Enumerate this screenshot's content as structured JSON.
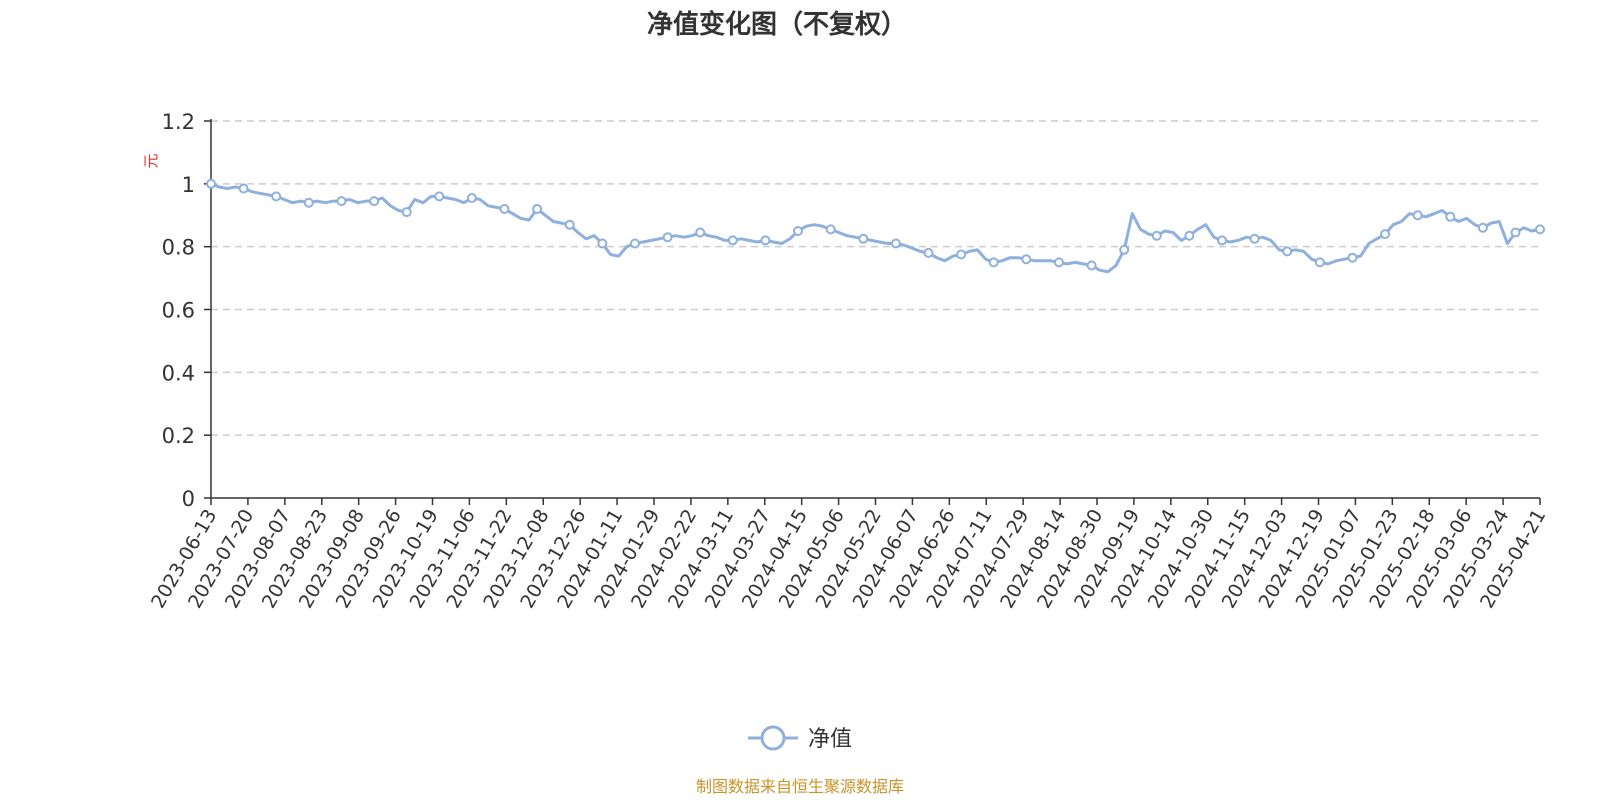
{
  "chart_data": {
    "type": "line",
    "title": "净值变化图（不复权）",
    "ylabel": "元",
    "xlabel": "",
    "ylim": [
      0,
      1.2
    ],
    "yticks": [
      "0",
      "0.2",
      "0.4",
      "0.6",
      "0.8",
      "1",
      "1.2"
    ],
    "grid": true,
    "legend_position": "bottom-center",
    "x_tick_labels": [
      "2023-06-13",
      "2023-07-20",
      "2023-08-07",
      "2023-08-23",
      "2023-09-08",
      "2023-09-26",
      "2023-10-19",
      "2023-11-06",
      "2023-11-22",
      "2023-12-08",
      "2023-12-26",
      "2024-01-11",
      "2024-01-29",
      "2024-02-22",
      "2024-03-11",
      "2024-03-27",
      "2024-04-15",
      "2024-05-06",
      "2024-05-22",
      "2024-06-07",
      "2024-06-26",
      "2024-07-11",
      "2024-07-29",
      "2024-08-14",
      "2024-08-30",
      "2024-09-19",
      "2024-10-14",
      "2024-10-30",
      "2024-11-15",
      "2024-12-03",
      "2024-12-19",
      "2025-01-07",
      "2025-01-23",
      "2025-02-18",
      "2025-03-06",
      "2025-03-24",
      "2025-04-21"
    ],
    "series": [
      {
        "name": "净值",
        "color": "#8fb0dc",
        "marker": "circle",
        "values": [
          1.0,
          0.99,
          0.985,
          0.99,
          0.985,
          0.975,
          0.97,
          0.965,
          0.96,
          0.95,
          0.94,
          0.945,
          0.94,
          0.945,
          0.94,
          0.945,
          0.945,
          0.95,
          0.94,
          0.945,
          0.945,
          0.955,
          0.93,
          0.915,
          0.91,
          0.95,
          0.94,
          0.96,
          0.96,
          0.955,
          0.95,
          0.94,
          0.955,
          0.95,
          0.93,
          0.925,
          0.92,
          0.905,
          0.89,
          0.885,
          0.92,
          0.9,
          0.88,
          0.875,
          0.87,
          0.845,
          0.825,
          0.835,
          0.81,
          0.775,
          0.77,
          0.8,
          0.81,
          0.815,
          0.82,
          0.825,
          0.83,
          0.835,
          0.83,
          0.835,
          0.845,
          0.835,
          0.83,
          0.82,
          0.82,
          0.825,
          0.82,
          0.815,
          0.82,
          0.815,
          0.81,
          0.825,
          0.85,
          0.865,
          0.87,
          0.865,
          0.855,
          0.845,
          0.835,
          0.83,
          0.825,
          0.82,
          0.815,
          0.81,
          0.81,
          0.805,
          0.795,
          0.785,
          0.78,
          0.765,
          0.755,
          0.77,
          0.775,
          0.785,
          0.79,
          0.76,
          0.75,
          0.755,
          0.765,
          0.765,
          0.76,
          0.755,
          0.755,
          0.755,
          0.75,
          0.745,
          0.75,
          0.745,
          0.74,
          0.725,
          0.72,
          0.74,
          0.79,
          0.905,
          0.855,
          0.84,
          0.835,
          0.85,
          0.845,
          0.82,
          0.835,
          0.855,
          0.87,
          0.83,
          0.82,
          0.815,
          0.82,
          0.83,
          0.825,
          0.83,
          0.82,
          0.79,
          0.785,
          0.79,
          0.785,
          0.76,
          0.75,
          0.745,
          0.755,
          0.76,
          0.765,
          0.77,
          0.81,
          0.825,
          0.84,
          0.87,
          0.88,
          0.905,
          0.9,
          0.895,
          0.905,
          0.915,
          0.895,
          0.88,
          0.89,
          0.87,
          0.86,
          0.875,
          0.88,
          0.81,
          0.845,
          0.86,
          0.85,
          0.855
        ]
      }
    ]
  },
  "legend": {
    "label": "净值"
  },
  "source": {
    "text": "制图数据来自恒生聚源数据库",
    "color": "#c8942a"
  },
  "colors": {
    "axis": "#333333",
    "grid": "#cccccc",
    "unit_label": "#e03030"
  }
}
